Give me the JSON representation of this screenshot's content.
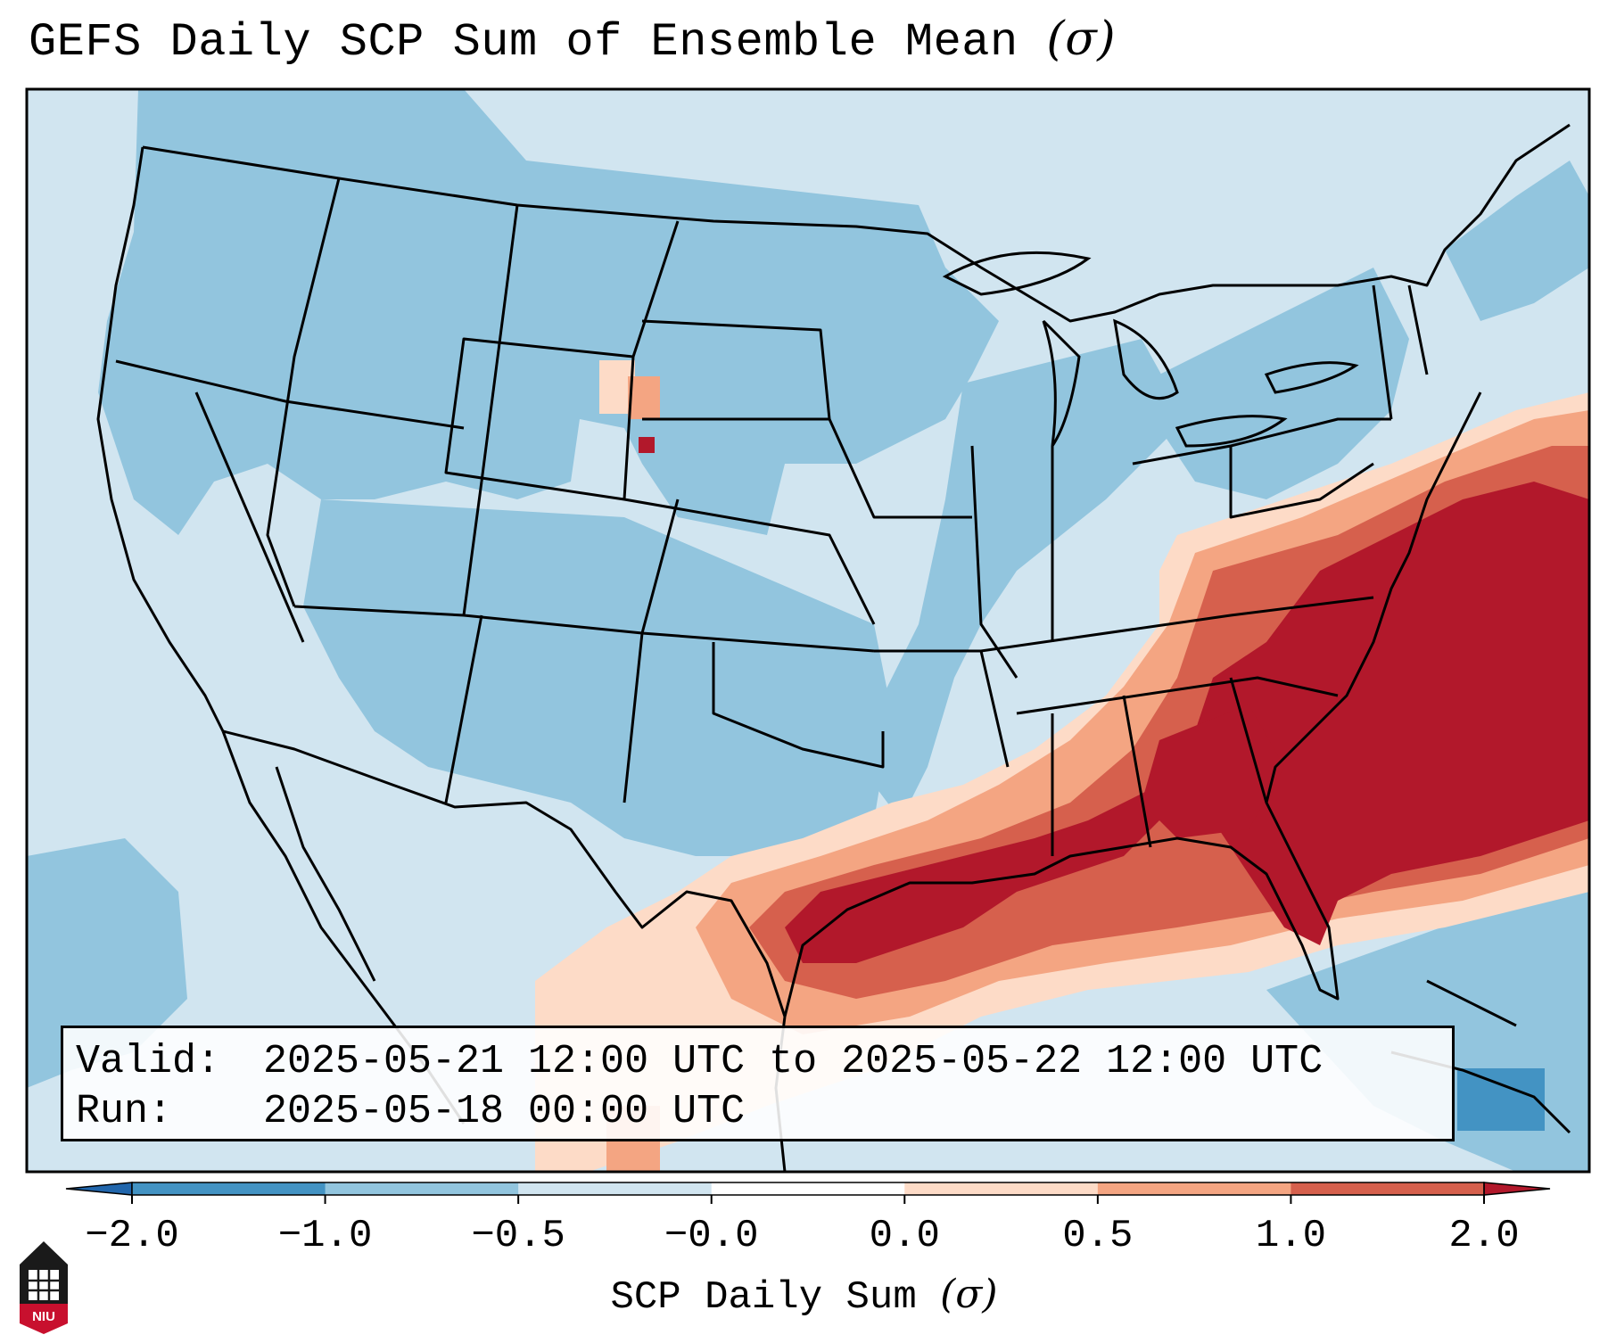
{
  "title": "GEFS Daily SCP Sum of Ensemble Mean",
  "title_unit": "(σ)",
  "valid_label": "Valid:",
  "valid_value": "2025-05-21 12:00 UTC to 2025-05-22 12:00 UTC",
  "run_label": "Run:",
  "run_value": "2025-05-18 00:00 UTC",
  "colorbar": {
    "label": "SCP Daily Sum",
    "label_unit": "(σ)",
    "ticks": [
      "−2.0",
      "−1.0",
      "−0.5",
      "−0.0",
      "0.0",
      "0.5",
      "1.0",
      "2.0"
    ],
    "colors": [
      "#4393c3",
      "#92c5de",
      "#d1e5f0",
      "#ffffff",
      "#fddbc7",
      "#f4a582",
      "#d6604d",
      "#b2182b"
    ],
    "extend_low_color": "#2166ac",
    "extend_high_color": "#b2182b"
  },
  "logo": {
    "text": "NIU",
    "icon": "university-tower-icon",
    "color": "#c8102e"
  },
  "map": {
    "domain": "contiguous-united-states",
    "background_color": "#d1e5f0",
    "boundary_color": "#000000"
  }
}
